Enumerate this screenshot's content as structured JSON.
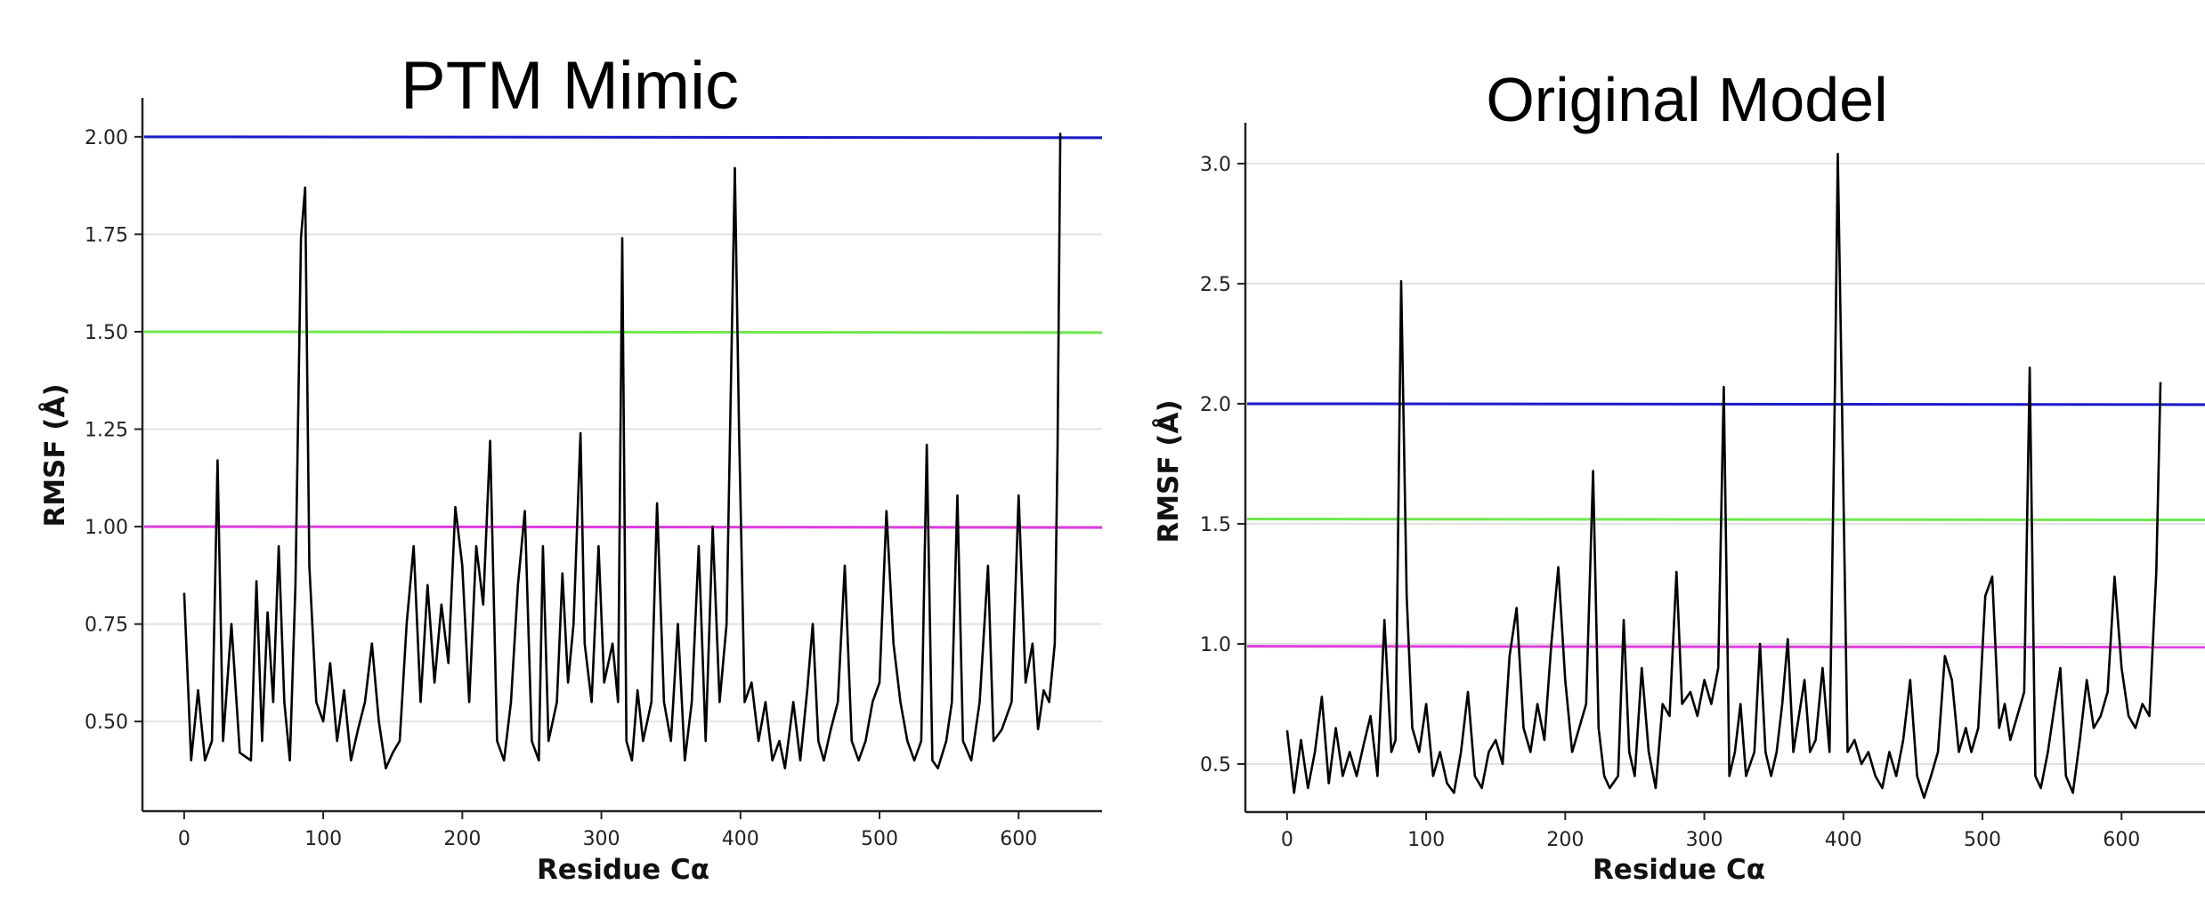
{
  "chart_data": [
    {
      "type": "line",
      "title": "PTM Mimic",
      "xlabel": "Residue Cα",
      "ylabel": "RMSF (Å)",
      "xlim": [
        -30,
        660
      ],
      "ylim": [
        0.27,
        2.1
      ],
      "xticks": [
        0,
        100,
        200,
        300,
        400,
        500,
        600
      ],
      "yticks": [
        0.5,
        0.75,
        1.0,
        1.25,
        1.5,
        1.75,
        2.0
      ],
      "ytick_labels": [
        "0.50",
        "0.75",
        "1.00",
        "1.25",
        "1.50",
        "1.75",
        "2.00"
      ],
      "grid": "horizontal",
      "hlines": [
        {
          "y": 2.0,
          "color": "#1a1acc"
        },
        {
          "y": 1.5,
          "color": "#6fe84d"
        },
        {
          "y": 1.0,
          "color": "#e03ce0"
        }
      ],
      "series": [
        {
          "color": "#000000",
          "points": [
            [
              0,
              0.83
            ],
            [
              5,
              0.4
            ],
            [
              10,
              0.58
            ],
            [
              15,
              0.4
            ],
            [
              20,
              0.45
            ],
            [
              24,
              1.17
            ],
            [
              28,
              0.45
            ],
            [
              34,
              0.75
            ],
            [
              40,
              0.42
            ],
            [
              48,
              0.4
            ],
            [
              52,
              0.86
            ],
            [
              56,
              0.45
            ],
            [
              60,
              0.78
            ],
            [
              64,
              0.55
            ],
            [
              68,
              0.95
            ],
            [
              72,
              0.55
            ],
            [
              76,
              0.4
            ],
            [
              80,
              0.85
            ],
            [
              84,
              1.74
            ],
            [
              87,
              1.87
            ],
            [
              90,
              0.9
            ],
            [
              95,
              0.55
            ],
            [
              100,
              0.5
            ],
            [
              105,
              0.65
            ],
            [
              110,
              0.45
            ],
            [
              115,
              0.58
            ],
            [
              120,
              0.4
            ],
            [
              125,
              0.48
            ],
            [
              130,
              0.55
            ],
            [
              135,
              0.7
            ],
            [
              140,
              0.5
            ],
            [
              145,
              0.38
            ],
            [
              150,
              0.42
            ],
            [
              155,
              0.45
            ],
            [
              160,
              0.75
            ],
            [
              165,
              0.95
            ],
            [
              170,
              0.55
            ],
            [
              175,
              0.85
            ],
            [
              180,
              0.6
            ],
            [
              185,
              0.8
            ],
            [
              190,
              0.65
            ],
            [
              195,
              1.05
            ],
            [
              200,
              0.9
            ],
            [
              205,
              0.55
            ],
            [
              210,
              0.95
            ],
            [
              215,
              0.8
            ],
            [
              220,
              1.22
            ],
            [
              225,
              0.45
            ],
            [
              230,
              0.4
            ],
            [
              235,
              0.55
            ],
            [
              240,
              0.85
            ],
            [
              245,
              1.04
            ],
            [
              250,
              0.45
            ],
            [
              255,
              0.4
            ],
            [
              258,
              0.95
            ],
            [
              262,
              0.45
            ],
            [
              268,
              0.55
            ],
            [
              272,
              0.88
            ],
            [
              276,
              0.6
            ],
            [
              280,
              0.75
            ],
            [
              285,
              1.24
            ],
            [
              288,
              0.7
            ],
            [
              293,
              0.55
            ],
            [
              298,
              0.95
            ],
            [
              302,
              0.6
            ],
            [
              308,
              0.7
            ],
            [
              312,
              0.55
            ],
            [
              315,
              1.74
            ],
            [
              318,
              0.45
            ],
            [
              322,
              0.4
            ],
            [
              326,
              0.58
            ],
            [
              330,
              0.45
            ],
            [
              336,
              0.55
            ],
            [
              340,
              1.06
            ],
            [
              345,
              0.55
            ],
            [
              350,
              0.45
            ],
            [
              355,
              0.75
            ],
            [
              360,
              0.4
            ],
            [
              365,
              0.55
            ],
            [
              370,
              0.95
            ],
            [
              375,
              0.45
            ],
            [
              380,
              1.0
            ],
            [
              385,
              0.55
            ],
            [
              390,
              0.75
            ],
            [
              396,
              1.92
            ],
            [
              399,
              1.25
            ],
            [
              403,
              0.55
            ],
            [
              408,
              0.6
            ],
            [
              413,
              0.45
            ],
            [
              418,
              0.55
            ],
            [
              423,
              0.4
            ],
            [
              428,
              0.45
            ],
            [
              432,
              0.38
            ],
            [
              438,
              0.55
            ],
            [
              443,
              0.4
            ],
            [
              448,
              0.58
            ],
            [
              452,
              0.75
            ],
            [
              456,
              0.45
            ],
            [
              460,
              0.4
            ],
            [
              465,
              0.48
            ],
            [
              470,
              0.55
            ],
            [
              475,
              0.9
            ],
            [
              480,
              0.45
            ],
            [
              485,
              0.4
            ],
            [
              490,
              0.45
            ],
            [
              495,
              0.55
            ],
            [
              500,
              0.6
            ],
            [
              505,
              1.04
            ],
            [
              510,
              0.7
            ],
            [
              515,
              0.55
            ],
            [
              520,
              0.45
            ],
            [
              525,
              0.4
            ],
            [
              530,
              0.45
            ],
            [
              534,
              1.21
            ],
            [
              538,
              0.4
            ],
            [
              542,
              0.38
            ],
            [
              548,
              0.45
            ],
            [
              552,
              0.55
            ],
            [
              556,
              1.08
            ],
            [
              560,
              0.45
            ],
            [
              566,
              0.4
            ],
            [
              572,
              0.55
            ],
            [
              578,
              0.9
            ],
            [
              582,
              0.45
            ],
            [
              588,
              0.48
            ],
            [
              595,
              0.55
            ],
            [
              600,
              1.08
            ],
            [
              605,
              0.6
            ],
            [
              610,
              0.7
            ],
            [
              614,
              0.48
            ],
            [
              618,
              0.58
            ],
            [
              622,
              0.55
            ],
            [
              626,
              0.7
            ],
            [
              628,
              1.2
            ],
            [
              630,
              2.01
            ]
          ]
        }
      ]
    },
    {
      "type": "line",
      "title": "Original Model",
      "xlabel": "Residue Cα",
      "ylabel": "RMSF (Å)",
      "xlim": [
        -30,
        660
      ],
      "ylim": [
        0.3,
        3.17
      ],
      "xticks": [
        0,
        100,
        200,
        300,
        400,
        500,
        600
      ],
      "yticks": [
        0.5,
        1.0,
        1.5,
        2.0,
        2.5,
        3.0
      ],
      "ytick_labels": [
        "0.5",
        "1.0",
        "1.5",
        "2.0",
        "2.5",
        "3.0"
      ],
      "grid": "horizontal",
      "hlines": [
        {
          "y": 2.0,
          "color": "#1a1acc"
        },
        {
          "y": 1.52,
          "color": "#6fe84d"
        },
        {
          "y": 0.99,
          "color": "#e03ce0"
        }
      ],
      "series": [
        {
          "color": "#000000",
          "points": [
            [
              0,
              0.64
            ],
            [
              5,
              0.38
            ],
            [
              10,
              0.6
            ],
            [
              15,
              0.4
            ],
            [
              20,
              0.55
            ],
            [
              25,
              0.78
            ],
            [
              30,
              0.42
            ],
            [
              35,
              0.65
            ],
            [
              40,
              0.45
            ],
            [
              45,
              0.55
            ],
            [
              50,
              0.45
            ],
            [
              55,
              0.58
            ],
            [
              60,
              0.7
            ],
            [
              65,
              0.45
            ],
            [
              70,
              1.1
            ],
            [
              75,
              0.55
            ],
            [
              78,
              0.6
            ],
            [
              82,
              2.51
            ],
            [
              86,
              1.2
            ],
            [
              90,
              0.65
            ],
            [
              95,
              0.55
            ],
            [
              100,
              0.75
            ],
            [
              105,
              0.45
            ],
            [
              110,
              0.55
            ],
            [
              115,
              0.42
            ],
            [
              120,
              0.38
            ],
            [
              125,
              0.55
            ],
            [
              130,
              0.8
            ],
            [
              135,
              0.45
            ],
            [
              140,
              0.4
            ],
            [
              145,
              0.55
            ],
            [
              150,
              0.6
            ],
            [
              155,
              0.5
            ],
            [
              160,
              0.95
            ],
            [
              165,
              1.15
            ],
            [
              170,
              0.65
            ],
            [
              175,
              0.55
            ],
            [
              180,
              0.75
            ],
            [
              185,
              0.6
            ],
            [
              190,
              1.0
            ],
            [
              195,
              1.32
            ],
            [
              200,
              0.85
            ],
            [
              205,
              0.55
            ],
            [
              210,
              0.65
            ],
            [
              215,
              0.75
            ],
            [
              220,
              1.72
            ],
            [
              224,
              0.65
            ],
            [
              228,
              0.45
            ],
            [
              232,
              0.4
            ],
            [
              238,
              0.45
            ],
            [
              242,
              1.1
            ],
            [
              246,
              0.55
            ],
            [
              250,
              0.45
            ],
            [
              255,
              0.9
            ],
            [
              260,
              0.55
            ],
            [
              265,
              0.4
            ],
            [
              270,
              0.75
            ],
            [
              275,
              0.7
            ],
            [
              280,
              1.3
            ],
            [
              284,
              0.75
            ],
            [
              290,
              0.8
            ],
            [
              295,
              0.7
            ],
            [
              300,
              0.85
            ],
            [
              305,
              0.75
            ],
            [
              310,
              0.9
            ],
            [
              314,
              2.07
            ],
            [
              318,
              0.45
            ],
            [
              322,
              0.55
            ],
            [
              326,
              0.75
            ],
            [
              330,
              0.45
            ],
            [
              336,
              0.55
            ],
            [
              340,
              1.0
            ],
            [
              344,
              0.55
            ],
            [
              348,
              0.45
            ],
            [
              352,
              0.55
            ],
            [
              356,
              0.75
            ],
            [
              360,
              1.02
            ],
            [
              364,
              0.55
            ],
            [
              368,
              0.7
            ],
            [
              372,
              0.85
            ],
            [
              376,
              0.55
            ],
            [
              380,
              0.6
            ],
            [
              385,
              0.9
            ],
            [
              390,
              0.55
            ],
            [
              394,
              2.1
            ],
            [
              396,
              3.04
            ],
            [
              399,
              2.0
            ],
            [
              403,
              0.55
            ],
            [
              408,
              0.6
            ],
            [
              413,
              0.5
            ],
            [
              418,
              0.55
            ],
            [
              423,
              0.45
            ],
            [
              428,
              0.4
            ],
            [
              433,
              0.55
            ],
            [
              438,
              0.45
            ],
            [
              443,
              0.6
            ],
            [
              448,
              0.85
            ],
            [
              453,
              0.45
            ],
            [
              458,
              0.36
            ],
            [
              463,
              0.45
            ],
            [
              468,
              0.55
            ],
            [
              473,
              0.95
            ],
            [
              478,
              0.85
            ],
            [
              483,
              0.55
            ],
            [
              488,
              0.65
            ],
            [
              492,
              0.55
            ],
            [
              497,
              0.65
            ],
            [
              502,
              1.2
            ],
            [
              507,
              1.28
            ],
            [
              512,
              0.65
            ],
            [
              516,
              0.75
            ],
            [
              520,
              0.6
            ],
            [
              525,
              0.7
            ],
            [
              530,
              0.8
            ],
            [
              534,
              2.15
            ],
            [
              538,
              0.45
            ],
            [
              542,
              0.4
            ],
            [
              547,
              0.55
            ],
            [
              552,
              0.75
            ],
            [
              556,
              0.9
            ],
            [
              560,
              0.45
            ],
            [
              565,
              0.38
            ],
            [
              570,
              0.6
            ],
            [
              575,
              0.85
            ],
            [
              580,
              0.65
            ],
            [
              585,
              0.7
            ],
            [
              590,
              0.8
            ],
            [
              595,
              1.28
            ],
            [
              600,
              0.9
            ],
            [
              605,
              0.7
            ],
            [
              610,
              0.65
            ],
            [
              615,
              0.75
            ],
            [
              620,
              0.7
            ],
            [
              625,
              1.3
            ],
            [
              628,
              2.09
            ]
          ]
        }
      ]
    }
  ]
}
